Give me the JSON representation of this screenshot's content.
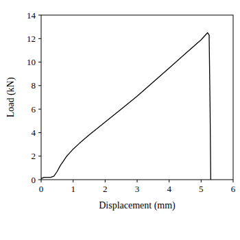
{
  "chart_data": {
    "type": "line",
    "x_label": "Displacement (mm)",
    "y_label": "Load (kN)",
    "x": [
      0,
      0.1,
      0.3,
      0.4,
      0.5,
      0.6,
      0.7,
      0.8,
      0.9,
      1.0,
      1.2,
      1.5,
      2.0,
      2.5,
      3.0,
      3.5,
      4.0,
      4.5,
      5.0,
      5.2,
      5.25,
      5.28,
      5.3
    ],
    "values": [
      0.1,
      0.2,
      0.2,
      0.3,
      0.7,
      1.2,
      1.6,
      2.0,
      2.3,
      2.6,
      3.1,
      3.8,
      4.9,
      6.0,
      7.1,
      8.3,
      9.5,
      10.7,
      11.9,
      12.5,
      12.3,
      6.0,
      0
    ],
    "color": "#000000",
    "xlim": [
      0,
      6
    ],
    "xticks": [
      0,
      1,
      2,
      3,
      4,
      5,
      6
    ],
    "ylim": [
      0,
      14
    ],
    "yticks": [
      0,
      2,
      4,
      6,
      8,
      10,
      12,
      14
    ],
    "grid": false
  }
}
